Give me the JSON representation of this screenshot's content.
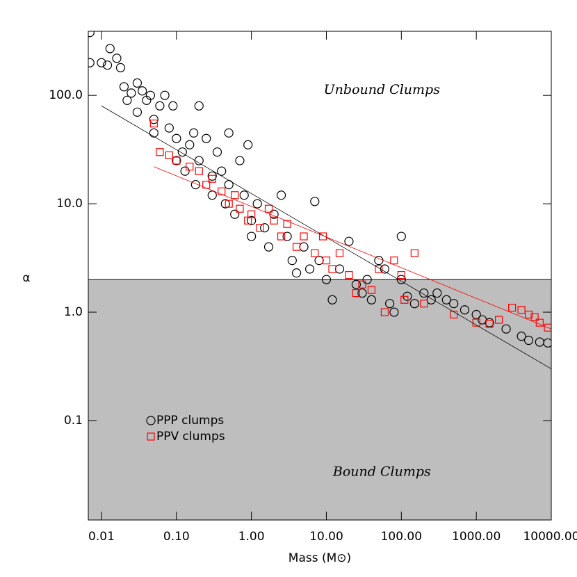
{
  "chart_data": {
    "type": "scatter",
    "xlabel": "Mass (M⊙)",
    "ylabel": "α",
    "xlog": true,
    "ylog": true,
    "xlim": [
      0.00667,
      10000
    ],
    "ylim": [
      0.0121,
      390
    ],
    "xticks": [
      0.01,
      {
        "value": 0.1,
        "label": "0.10"
      },
      {
        "value": 1,
        "label": "1.00"
      },
      {
        "value": 10,
        "label": "10.00"
      },
      {
        "value": 100,
        "label": "100.00"
      },
      {
        "value": 1000,
        "label": "1000.00"
      },
      {
        "value": 10000,
        "label": "10000.00"
      }
    ],
    "yticks": [
      0.1,
      {
        "value": 1,
        "label": "1.0"
      },
      {
        "value": 10,
        "label": "10.0"
      },
      {
        "value": 100,
        "label": "100.0"
      }
    ],
    "shade_below": 2,
    "shade_color": "#bebebe",
    "legend": "lower left",
    "annotations": [
      {
        "text": "Unbound Clumps",
        "x": 100,
        "y": 100
      },
      {
        "text": "Bound Clumps",
        "x": 100,
        "y": 0.03
      }
    ],
    "fit_lines": [
      {
        "color": "#000000",
        "x": [
          0.01,
          10000
        ],
        "values": [
          80,
          0.3
        ]
      },
      {
        "color": "#ff0000",
        "x": [
          0.05,
          10000
        ],
        "values": [
          22,
          0.7
        ]
      }
    ],
    "series": [
      {
        "name": "PPP clumps",
        "color": "#000000",
        "marker": "circle",
        "x": [
          0.007,
          0.007,
          0.01,
          0.012,
          0.013,
          0.016,
          0.018,
          0.02,
          0.022,
          0.025,
          0.03,
          0.03,
          0.035,
          0.04,
          0.045,
          0.05,
          0.05,
          0.06,
          0.07,
          0.08,
          0.09,
          0.1,
          0.1,
          0.12,
          0.13,
          0.15,
          0.17,
          0.18,
          0.2,
          0.2,
          0.25,
          0.3,
          0.3,
          0.35,
          0.4,
          0.45,
          0.5,
          0.5,
          0.6,
          0.7,
          0.8,
          0.9,
          1,
          1,
          1.2,
          1.5,
          1.7,
          2,
          2.5,
          3,
          3.5,
          4,
          5,
          6,
          7,
          8,
          10,
          12,
          15,
          20,
          25,
          30,
          35,
          40,
          50,
          60,
          70,
          80,
          100,
          100,
          120,
          150,
          200,
          250,
          300,
          400,
          500,
          700,
          1000,
          1200,
          1500,
          2500,
          4000,
          5000,
          7000,
          9000
        ],
        "values": [
          380,
          200,
          200,
          190,
          270,
          220,
          180,
          120,
          90,
          105,
          130,
          70,
          110,
          90,
          100,
          60,
          45,
          80,
          100,
          50,
          80,
          40,
          25,
          30,
          20,
          35,
          45,
          15,
          80,
          25,
          40,
          18,
          12,
          30,
          20,
          10,
          45,
          15,
          8,
          25,
          12,
          35,
          7,
          5,
          10,
          6,
          4,
          8,
          12,
          5,
          3,
          2.3,
          4,
          2.5,
          10.5,
          3,
          2,
          1.3,
          2.5,
          4.5,
          1.8,
          1.5,
          2,
          1.3,
          3,
          2.5,
          1.2,
          1,
          5,
          2,
          1.4,
          1.2,
          1.5,
          1.3,
          1.5,
          1.3,
          1.2,
          1.05,
          0.95,
          0.85,
          0.8,
          0.7,
          0.6,
          0.55,
          0.53,
          0.52
        ]
      },
      {
        "name": "PPV clumps",
        "color": "#ff0000",
        "marker": "square",
        "x": [
          0.05,
          0.06,
          0.08,
          0.1,
          0.15,
          0.2,
          0.25,
          0.3,
          0.4,
          0.5,
          0.6,
          0.7,
          0.9,
          1,
          1.3,
          1.7,
          2,
          2.5,
          3,
          4,
          5,
          7,
          9,
          10,
          12,
          15,
          20,
          25,
          30,
          40,
          50,
          60,
          80,
          100,
          110,
          150,
          200,
          500,
          1000,
          1500,
          2000,
          3000,
          4000,
          5000,
          6000,
          7000,
          9000
        ],
        "values": [
          55,
          30,
          28,
          25,
          22,
          20,
          15,
          17,
          13,
          10,
          12,
          9,
          7,
          8,
          6,
          9,
          7,
          5,
          6.5,
          4,
          5,
          3.5,
          5,
          3,
          2.5,
          3.5,
          2.2,
          1.5,
          1.8,
          1.6,
          2.5,
          1,
          3,
          2.2,
          1.3,
          3.5,
          1.2,
          0.95,
          0.8,
          0.78,
          0.85,
          1.1,
          1.05,
          0.95,
          0.9,
          0.8,
          0.72
        ]
      }
    ]
  }
}
